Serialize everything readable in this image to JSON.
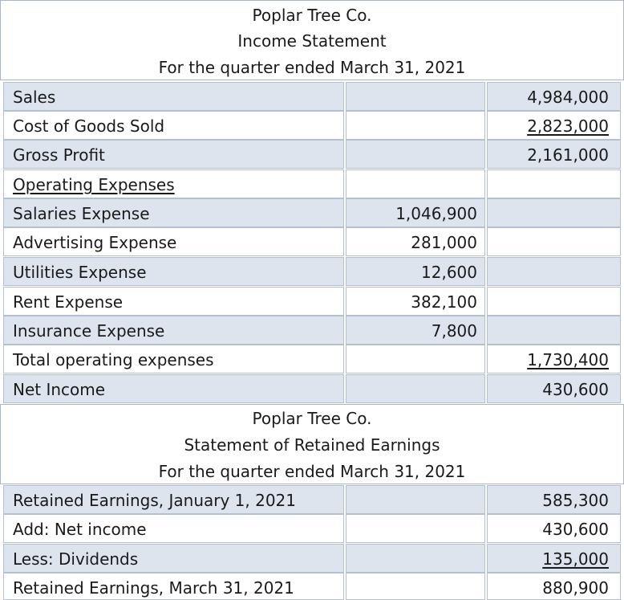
{
  "income_statement": {
    "company": "Poplar Tree Co.",
    "title": "Income Statement",
    "period": "For the quarter ended March 31, 2021",
    "rows": [
      {
        "label": "Sales",
        "mid": "",
        "right": "4,984,000"
      },
      {
        "label": "Cost of Goods Sold",
        "mid": "",
        "right": "2,823,000"
      },
      {
        "label": "Gross Profit",
        "mid": "",
        "right": "2,161,000"
      },
      {
        "label": "Operating Expenses",
        "mid": "",
        "right": ""
      },
      {
        "label": "Salaries Expense",
        "mid": "1,046,900",
        "right": ""
      },
      {
        "label": "Advertising Expense",
        "mid": "281,000",
        "right": ""
      },
      {
        "label": "Utilities Expense",
        "mid": "12,600",
        "right": ""
      },
      {
        "label": "Rent Expense",
        "mid": "382,100",
        "right": ""
      },
      {
        "label": "Insurance Expense",
        "mid": "7,800",
        "right": ""
      },
      {
        "label": "Total operating expenses",
        "mid": "",
        "right": "1,730,400"
      },
      {
        "label": "Net Income",
        "mid": "",
        "right": "430,600"
      }
    ]
  },
  "retained_earnings": {
    "company": "Poplar Tree Co.",
    "title": "Statement of Retained Earnings",
    "period": "For the quarter ended March 31, 2021",
    "rows": [
      {
        "label": "Retained Earnings, January 1, 2021",
        "mid": "",
        "right": "585,300"
      },
      {
        "label": "Add:  Net income",
        "mid": "",
        "right": "430,600"
      },
      {
        "label": "Less:  Dividends",
        "mid": "",
        "right": "135,000"
      },
      {
        "label": "Retained Earnings, March 31, 2021",
        "mid": "",
        "right": "880,900"
      }
    ]
  }
}
